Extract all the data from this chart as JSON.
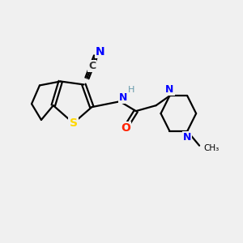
{
  "background_color": "#f0f0f0",
  "bond_color": "#000000",
  "atom_colors": {
    "N": "#0000FF",
    "S": "#FFD700",
    "O": "#FF2200",
    "C": "#000000",
    "H": "#6699AA",
    "CN_C": "#333333",
    "CN_N": "#0000FF"
  },
  "figsize": [
    3.0,
    3.0
  ],
  "dpi": 100
}
